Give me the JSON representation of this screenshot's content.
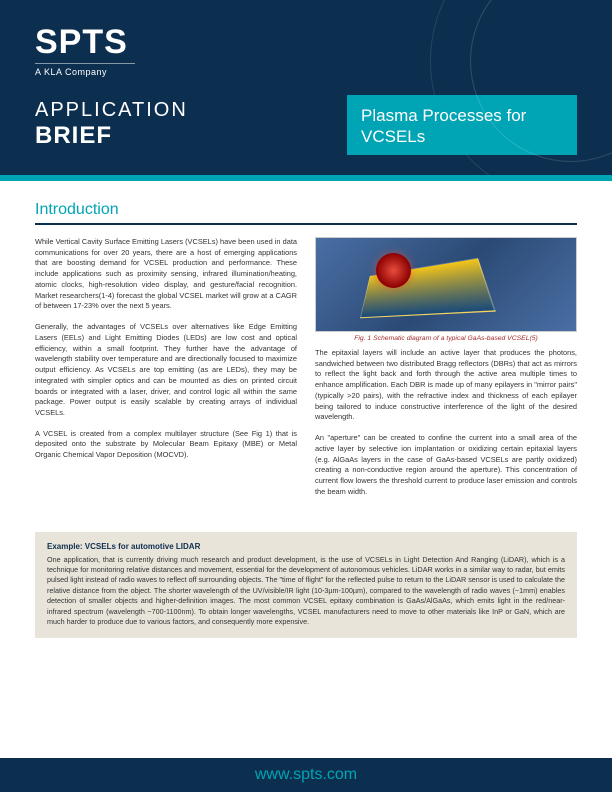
{
  "brand": {
    "logo_main": "SPTS",
    "logo_sub": "A KLA Company"
  },
  "header": {
    "line1": "APPLICATION",
    "line2": "BRIEF",
    "callout": "Plasma Processes for VCSELs"
  },
  "colors": {
    "navy": "#0d2f4f",
    "teal": "#00a5b5",
    "box_bg": "#e8e4da",
    "caption": "#a52a2a"
  },
  "section_title": "Introduction",
  "left_col": {
    "p1": "While Vertical Cavity Surface Emitting Lasers (VCSELs) have been used in data communications for over 20 years, there are a host of emerging applications that are boosting demand for VCSEL production and performance. These include applications such as proximity sensing, infrared illumination/heating, atomic clocks, high-resolution video display, and gesture/facial recognition. Market researchers(1‑4) forecast the global VCSEL market will grow at a CAGR of between 17-23% over the next 5 years.",
    "p2": "Generally, the advantages of VCSELs over alternatives like Edge Emitting Lasers (EELs) and Light Emitting Diodes (LEDs) are low cost and optical efficiency, within a small footprint. They further have the advantage of wavelength stability over temperature and are directionally focused to maximize output efficiency. As VCSELs are top emitting (as are LEDs), they may be integrated with simpler optics and can be mounted as dies on printed circuit boards or integrated with a laser, driver, and control logic all within the same package. Power output is easily scalable by creating arrays of individual VCSELs.",
    "p3": "A VCSEL is created from a complex multilayer structure (See Fig 1) that is deposited onto the substrate by Molecular Beam Epitaxy (MBE) or Metal Organic Chemical Vapor Deposition (MOCVD)."
  },
  "right_col": {
    "fig_caption": "Fig. 1 Schematic diagram of a typical GaAs-based VCSEL(5)",
    "p1": "The epitaxial layers will include an active layer that produces the photons, sandwiched between two distributed Bragg reflectors (DBRs) that act as mirrors to reflect the light back and forth through the active area multiple times to enhance amplification. Each DBR is made up of many epilayers in \"mirror pairs\" (typically >20 pairs), with the refractive index and thickness of each epilayer being tailored to induce constructive interference of the light of the desired wavelength.",
    "p2": "An \"aperture\" can be created to confine the current into a small area of the active layer by selective ion implantation or oxidizing certain epitaxial layers (e.g. AlGaAs layers in the case of GaAs-based VCSELs are partly oxidized) creating a non-conductive region around the aperture). This concentration of current flow lowers the threshold current to produce laser emission and controls the beam width."
  },
  "example": {
    "title": "Example: VCSELs for automotive LIDAR",
    "body": "One application, that is currently driving much research and product development, is the use of VCSELs in Light Detection And Ranging (LiDAR), which is a technique for monitoring relative distances and movement, essential for the development of autonomous vehicles. LiDAR works in a similar way to radar, but emits pulsed light instead of radio waves to reflect off surrounding objects. The \"time of flight\" for the reflected pulse to return to the LiDAR sensor is used to calculate the relative distance from the object. The shorter wavelength of the UV/visible/IR light (10-3µm-100µm), compared to the wavelength of radio waves (~1mm) enables detection of smaller objects and higher-definition images. The most common VCSEL epitaxy combination is GaAs/AlGaAs, which emits light in the red/near-infrared spectrum (wavelength ~700-1100nm). To obtain longer wavelengths, VCSEL manufacturers need to move to other materials like InP or GaN, which are much harder to produce due to various factors, and consequently more expensive."
  },
  "footer": {
    "url": "www.spts.com"
  }
}
